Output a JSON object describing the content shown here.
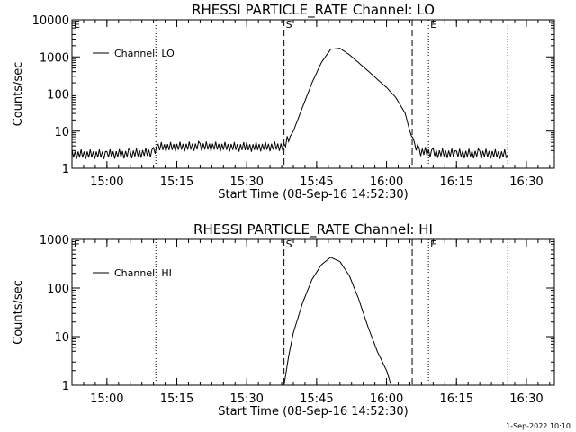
{
  "footer": {
    "timestamp": "1-Sep-2022 10:10"
  },
  "chart_data": [
    {
      "type": "line",
      "title": "RHESSI PARTICLE_RATE Channel: LO",
      "xlabel": "Start Time (08-Sep-16 14:52:30)",
      "ylabel": "Counts/sec",
      "y_scale": "log",
      "xlim": [
        "14:52:30",
        "16:36:00"
      ],
      "ylim": [
        1,
        10000
      ],
      "x_ticks": [
        "15:00",
        "15:15",
        "15:30",
        "15:45",
        "16:00",
        "16:15",
        "16:30"
      ],
      "y_ticks": [
        "1",
        "10",
        "100",
        "1000",
        "10000"
      ],
      "legend": {
        "placement": "top-left",
        "entries": [
          "Channel: LO"
        ]
      },
      "markers": [
        {
          "time": "14:52:30",
          "style": "dotted",
          "label": "E"
        },
        {
          "time": "15:10:30",
          "style": "dotted",
          "label": ""
        },
        {
          "time": "15:38:00",
          "style": "dashed",
          "label": "S"
        },
        {
          "time": "16:05:30",
          "style": "dashed",
          "label": ""
        },
        {
          "time": "16:09:00",
          "style": "dotted",
          "label": "E"
        },
        {
          "time": "16:26:00",
          "style": "dotted",
          "label": ""
        }
      ],
      "series": [
        {
          "name": "Channel: LO",
          "x": [
            "14:52:30",
            "15:00",
            "15:05",
            "15:10",
            "15:11",
            "15:20",
            "15:30",
            "15:38",
            "15:40",
            "15:42",
            "15:44",
            "15:46",
            "15:48",
            "15:50",
            "15:52",
            "15:54",
            "15:56",
            "15:58",
            "16:00",
            "16:02",
            "16:04",
            "16:05",
            "16:06",
            "16:07",
            "16:10",
            "16:15",
            "16:20",
            "16:26"
          ],
          "y": [
            2.3,
            2.3,
            2.4,
            2.6,
            3.6,
            3.8,
            3.6,
            3.8,
            10,
            45,
            200,
            700,
            1600,
            1700,
            1150,
            700,
            420,
            250,
            150,
            80,
            30,
            10,
            4,
            2.8,
            2.5,
            2.4,
            2.4,
            2.3
          ]
        }
      ]
    },
    {
      "type": "line",
      "title": "RHESSI PARTICLE_RATE Channel: HI",
      "xlabel": "Start Time (08-Sep-16 14:52:30)",
      "ylabel": "Counts/sec",
      "y_scale": "log",
      "xlim": [
        "14:52:30",
        "16:36:00"
      ],
      "ylim": [
        1,
        1000
      ],
      "x_ticks": [
        "15:00",
        "15:15",
        "15:30",
        "15:45",
        "16:00",
        "16:15",
        "16:30"
      ],
      "y_ticks": [
        "1",
        "10",
        "100",
        "1000"
      ],
      "legend": {
        "placement": "top-left",
        "entries": [
          "Channel: HI"
        ]
      },
      "markers": [
        {
          "time": "14:52:30",
          "style": "dotted",
          "label": "E"
        },
        {
          "time": "15:10:30",
          "style": "dotted",
          "label": ""
        },
        {
          "time": "15:38:00",
          "style": "dashed",
          "label": "S"
        },
        {
          "time": "16:05:30",
          "style": "dashed",
          "label": ""
        },
        {
          "time": "16:09:00",
          "style": "dotted",
          "label": "E"
        },
        {
          "time": "16:26:00",
          "style": "dotted",
          "label": ""
        }
      ],
      "series": [
        {
          "name": "Channel: HI",
          "x": [
            "15:38",
            "15:39",
            "15:40",
            "15:42",
            "15:44",
            "15:46",
            "15:48",
            "15:50",
            "15:52",
            "15:54",
            "15:56",
            "15:58",
            "16:00",
            "16:01"
          ],
          "y": [
            1,
            4,
            12,
            50,
            150,
            300,
            430,
            350,
            180,
            60,
            16,
            5,
            2,
            1
          ]
        }
      ]
    }
  ]
}
